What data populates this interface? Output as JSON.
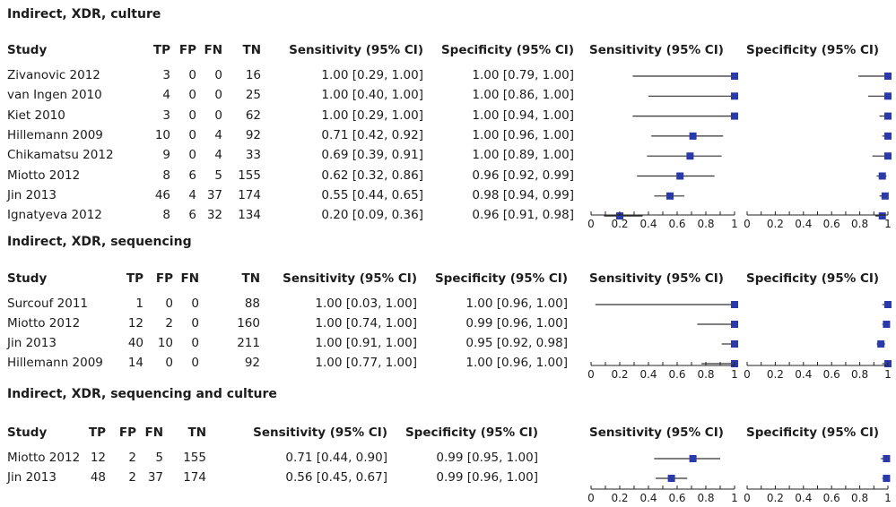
{
  "chart_data": [
    {
      "type": "table",
      "title": "Indirect, XDR, culture",
      "headers": [
        "Study",
        "TP",
        "FP",
        "FN",
        "TN",
        "Sensitivity (95% CI)",
        "Specificity (95% CI)",
        "Sensitivity (95% CI)",
        "Specificity (95% CI)"
      ],
      "rows": [
        {
          "study": "Zivanovic 2012",
          "tp": "3",
          "fp": "0",
          "fn": "0",
          "tn": "16",
          "sens_text": "1.00 [0.29, 1.00]",
          "spec_text": "1.00 [0.79, 1.00]",
          "sens": 1.0,
          "sens_lo": 0.29,
          "sens_hi": 1.0,
          "spec": 1.0,
          "spec_lo": 0.79,
          "spec_hi": 1.0
        },
        {
          "study": "van Ingen 2010",
          "tp": "4",
          "fp": "0",
          "fn": "0",
          "tn": "25",
          "sens_text": "1.00 [0.40, 1.00]",
          "spec_text": "1.00 [0.86, 1.00]",
          "sens": 1.0,
          "sens_lo": 0.4,
          "sens_hi": 1.0,
          "spec": 1.0,
          "spec_lo": 0.86,
          "spec_hi": 1.0
        },
        {
          "study": "Kiet 2010",
          "tp": "3",
          "fp": "0",
          "fn": "0",
          "tn": "62",
          "sens_text": "1.00 [0.29, 1.00]",
          "spec_text": "1.00 [0.94, 1.00]",
          "sens": 1.0,
          "sens_lo": 0.29,
          "sens_hi": 1.0,
          "spec": 1.0,
          "spec_lo": 0.94,
          "spec_hi": 1.0
        },
        {
          "study": "Hillemann 2009",
          "tp": "10",
          "fp": "0",
          "fn": "4",
          "tn": "92",
          "sens_text": "0.71 [0.42, 0.92]",
          "spec_text": "1.00 [0.96, 1.00]",
          "sens": 0.71,
          "sens_lo": 0.42,
          "sens_hi": 0.92,
          "spec": 1.0,
          "spec_lo": 0.96,
          "spec_hi": 1.0
        },
        {
          "study": "Chikamatsu 2012",
          "tp": "9",
          "fp": "0",
          "fn": "4",
          "tn": "33",
          "sens_text": "0.69 [0.39, 0.91]",
          "spec_text": "1.00 [0.89, 1.00]",
          "sens": 0.69,
          "sens_lo": 0.39,
          "sens_hi": 0.91,
          "spec": 1.0,
          "spec_lo": 0.89,
          "spec_hi": 1.0
        },
        {
          "study": "Miotto 2012",
          "tp": "8",
          "fp": "6",
          "fn": "5",
          "tn": "155",
          "sens_text": "0.62 [0.32, 0.86]",
          "spec_text": "0.96 [0.92, 0.99]",
          "sens": 0.62,
          "sens_lo": 0.32,
          "sens_hi": 0.86,
          "spec": 0.96,
          "spec_lo": 0.92,
          "spec_hi": 0.99
        },
        {
          "study": "Jin 2013",
          "tp": "46",
          "fp": "4",
          "fn": "37",
          "tn": "174",
          "sens_text": "0.55 [0.44, 0.65]",
          "spec_text": "0.98 [0.94, 0.99]",
          "sens": 0.55,
          "sens_lo": 0.44,
          "sens_hi": 0.65,
          "spec": 0.98,
          "spec_lo": 0.94,
          "spec_hi": 0.99
        },
        {
          "study": "Ignatyeva 2012",
          "tp": "8",
          "fp": "6",
          "fn": "32",
          "tn": "134",
          "sens_text": "0.20 [0.09, 0.36]",
          "spec_text": "0.96 [0.91, 0.98]",
          "sens": 0.2,
          "sens_lo": 0.09,
          "sens_hi": 0.36,
          "spec": 0.96,
          "spec_lo": 0.91,
          "spec_hi": 0.98
        }
      ],
      "xlim": [
        0,
        1
      ],
      "ticks": [
        "0",
        "0.2",
        "0.4",
        "0.6",
        "0.8",
        "1"
      ]
    },
    {
      "type": "table",
      "title": "Indirect, XDR, sequencing",
      "headers": [
        "Study",
        "TP",
        "FP",
        "FN",
        "TN",
        "Sensitivity (95% CI)",
        "Specificity (95% CI)",
        "Sensitivity (95% CI)",
        "Specificity (95% CI)"
      ],
      "rows": [
        {
          "study": "Surcouf 2011",
          "tp": "1",
          "fp": "0",
          "fn": "0",
          "tn": "88",
          "sens_text": "1.00 [0.03, 1.00]",
          "spec_text": "1.00 [0.96, 1.00]",
          "sens": 1.0,
          "sens_lo": 0.03,
          "sens_hi": 1.0,
          "spec": 1.0,
          "spec_lo": 0.96,
          "spec_hi": 1.0
        },
        {
          "study": "Miotto 2012",
          "tp": "12",
          "fp": "2",
          "fn": "0",
          "tn": "160",
          "sens_text": "1.00 [0.74, 1.00]",
          "spec_text": "0.99 [0.96, 1.00]",
          "sens": 1.0,
          "sens_lo": 0.74,
          "sens_hi": 1.0,
          "spec": 0.99,
          "spec_lo": 0.96,
          "spec_hi": 1.0
        },
        {
          "study": "Jin 2013",
          "tp": "40",
          "fp": "10",
          "fn": "0",
          "tn": "211",
          "sens_text": "1.00 [0.91, 1.00]",
          "spec_text": "0.95 [0.92, 0.98]",
          "sens": 1.0,
          "sens_lo": 0.91,
          "sens_hi": 1.0,
          "spec": 0.95,
          "spec_lo": 0.92,
          "spec_hi": 0.98
        },
        {
          "study": "Hillemann 2009",
          "tp": "14",
          "fp": "0",
          "fn": "0",
          "tn": "92",
          "sens_text": "1.00 [0.77, 1.00]",
          "spec_text": "1.00 [0.96, 1.00]",
          "sens": 1.0,
          "sens_lo": 0.77,
          "sens_hi": 1.0,
          "spec": 1.0,
          "spec_lo": 0.96,
          "spec_hi": 1.0
        }
      ],
      "xlim": [
        0,
        1
      ],
      "ticks": [
        "0",
        "0.2",
        "0.4",
        "0.6",
        "0.8",
        "1"
      ]
    },
    {
      "type": "table",
      "title": "Indirect, XDR, sequencing and culture",
      "headers": [
        "Study",
        "TP",
        "FP",
        "FN",
        "TN",
        "Sensitivity (95% CI)",
        "Specificity (95% CI)",
        "Sensitivity (95% CI)",
        "Specificity (95% CI)"
      ],
      "rows": [
        {
          "study": "Miotto 2012",
          "tp": "12",
          "fp": "2",
          "fn": "5",
          "tn": "155",
          "sens_text": "0.71 [0.44, 0.90]",
          "spec_text": "0.99 [0.95, 1.00]",
          "sens": 0.71,
          "sens_lo": 0.44,
          "sens_hi": 0.9,
          "spec": 0.99,
          "spec_lo": 0.95,
          "spec_hi": 1.0
        },
        {
          "study": "Jin 2013",
          "tp": "48",
          "fp": "2",
          "fn": "37",
          "tn": "174",
          "sens_text": "0.56 [0.45, 0.67]",
          "spec_text": "0.99 [0.96, 1.00]",
          "sens": 0.56,
          "sens_lo": 0.45,
          "sens_hi": 0.67,
          "spec": 0.99,
          "spec_lo": 0.96,
          "spec_hi": 1.0
        }
      ],
      "xlim": [
        0,
        1
      ],
      "ticks": [
        "0",
        "0.2",
        "0.4",
        "0.6",
        "0.8",
        "1"
      ]
    }
  ],
  "colors": {
    "marker": "#2a3aa8",
    "ci_line": "#333333",
    "text": "#1c1c1c"
  }
}
